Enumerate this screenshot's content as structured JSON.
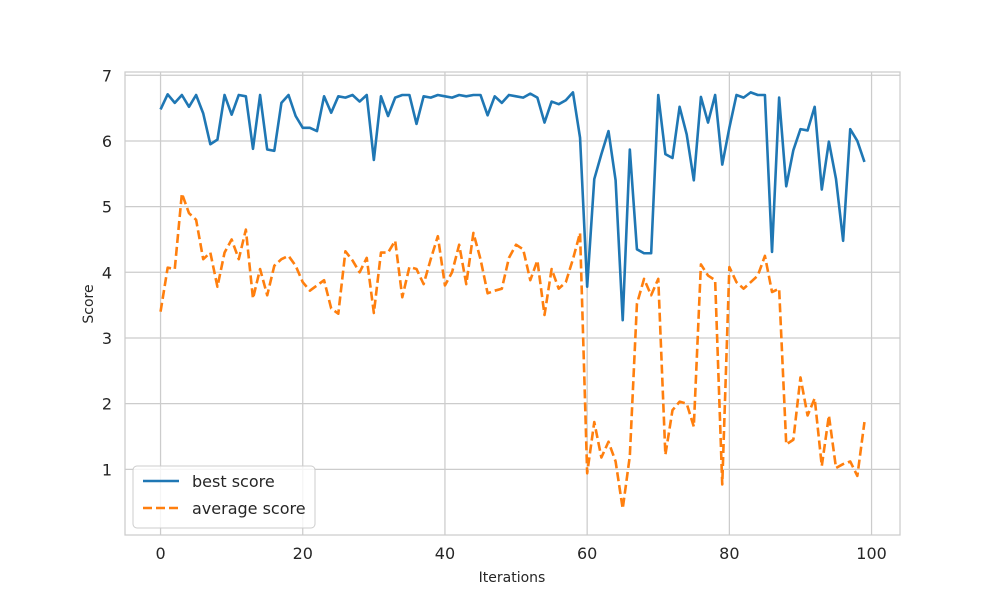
{
  "chart_data": {
    "type": "line",
    "title": "",
    "xlabel": "Iterations",
    "ylabel": "Score",
    "xlim": [
      -5,
      104
    ],
    "ylim": [
      0.0,
      7.05
    ],
    "xticks": [
      0,
      20,
      40,
      60,
      80,
      100
    ],
    "yticks": [
      1,
      2,
      3,
      4,
      5,
      6,
      7
    ],
    "grid": true,
    "legend_position": "bottom-left",
    "x": [
      0,
      1,
      2,
      3,
      4,
      5,
      6,
      7,
      8,
      9,
      10,
      11,
      12,
      13,
      14,
      15,
      16,
      17,
      18,
      19,
      20,
      21,
      22,
      23,
      24,
      25,
      26,
      27,
      28,
      29,
      30,
      31,
      32,
      33,
      34,
      35,
      36,
      37,
      38,
      39,
      40,
      41,
      42,
      43,
      44,
      45,
      46,
      47,
      48,
      49,
      50,
      51,
      52,
      53,
      54,
      55,
      56,
      57,
      58,
      59,
      60,
      61,
      62,
      63,
      64,
      65,
      66,
      67,
      68,
      69,
      70,
      71,
      72,
      73,
      74,
      75,
      76,
      77,
      78,
      79,
      80,
      81,
      82,
      83,
      84,
      85,
      86,
      87,
      88,
      89,
      90,
      91,
      92,
      93,
      94,
      95,
      96,
      97,
      98,
      99
    ],
    "series": [
      {
        "name": "best score",
        "color": "#1f77b4",
        "style": "solid",
        "values": [
          6.48,
          6.71,
          6.58,
          6.7,
          6.52,
          6.7,
          6.42,
          5.95,
          6.02,
          6.7,
          6.4,
          6.7,
          6.68,
          5.88,
          6.7,
          5.87,
          5.85,
          6.58,
          6.7,
          6.38,
          6.2,
          6.2,
          6.15,
          6.68,
          6.43,
          6.68,
          6.66,
          6.7,
          6.6,
          6.7,
          5.71,
          6.68,
          6.38,
          6.66,
          6.7,
          6.7,
          6.26,
          6.68,
          6.66,
          6.7,
          6.68,
          6.66,
          6.7,
          6.68,
          6.7,
          6.7,
          6.39,
          6.68,
          6.58,
          6.7,
          6.68,
          6.66,
          6.72,
          6.66,
          6.28,
          6.6,
          6.56,
          6.62,
          6.74,
          6.05,
          3.78,
          5.42,
          5.8,
          6.15,
          5.4,
          3.27,
          5.87,
          4.35,
          4.29,
          4.29,
          6.7,
          5.8,
          5.74,
          6.52,
          6.1,
          5.4,
          6.67,
          6.28,
          6.7,
          5.64,
          6.2,
          6.7,
          6.66,
          6.74,
          6.7,
          6.7,
          4.31,
          6.66,
          5.31,
          5.86,
          6.18,
          6.16,
          6.52,
          5.26,
          5.99,
          5.42,
          4.48,
          6.18,
          6.0,
          5.68
        ]
      },
      {
        "name": "average score",
        "color": "#ff7f0e",
        "style": "dashed",
        "values": [
          3.4,
          4.07,
          4.05,
          5.2,
          4.9,
          4.8,
          4.2,
          4.3,
          3.78,
          4.3,
          4.5,
          4.2,
          4.65,
          3.6,
          4.05,
          3.65,
          4.1,
          4.2,
          4.25,
          4.1,
          3.85,
          3.72,
          3.8,
          3.88,
          3.45,
          3.37,
          4.32,
          4.18,
          4.0,
          4.22,
          3.38,
          4.3,
          4.3,
          4.48,
          3.62,
          4.08,
          4.05,
          3.82,
          4.2,
          4.55,
          3.8,
          4.0,
          4.42,
          3.82,
          4.6,
          4.2,
          3.68,
          3.72,
          3.75,
          4.22,
          4.42,
          4.35,
          3.88,
          4.18,
          3.35,
          4.05,
          3.75,
          3.85,
          4.2,
          4.6,
          0.94,
          1.72,
          1.18,
          1.42,
          1.12,
          0.4,
          1.2,
          3.52,
          3.9,
          3.65,
          3.9,
          1.22,
          1.9,
          2.03,
          2.0,
          1.65,
          4.12,
          3.95,
          3.88,
          0.77,
          4.08,
          3.85,
          3.75,
          3.85,
          3.95,
          4.25,
          3.7,
          3.75,
          1.38,
          1.45,
          2.4,
          1.82,
          2.08,
          1.05,
          1.82,
          1.02,
          1.08,
          1.12,
          0.9,
          1.72
        ]
      }
    ]
  }
}
